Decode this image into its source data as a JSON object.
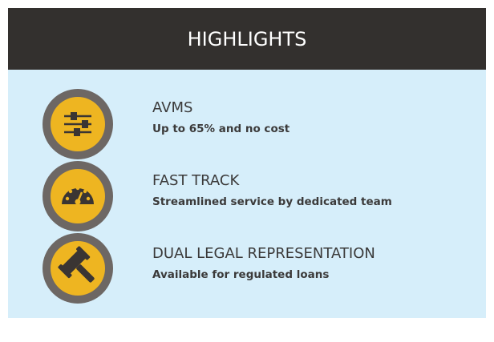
{
  "header": {
    "title": "HIGHLIGHTS"
  },
  "items": [
    {
      "title": "AVMS",
      "subtitle": "Up to 65% and no cost"
    },
    {
      "title": "FAST TRACK",
      "subtitle": "Streamlined service by dedicated team"
    },
    {
      "title": "DUAL LEGAL REPRESENTATION",
      "subtitle": "Available for regulated loans"
    }
  ]
}
